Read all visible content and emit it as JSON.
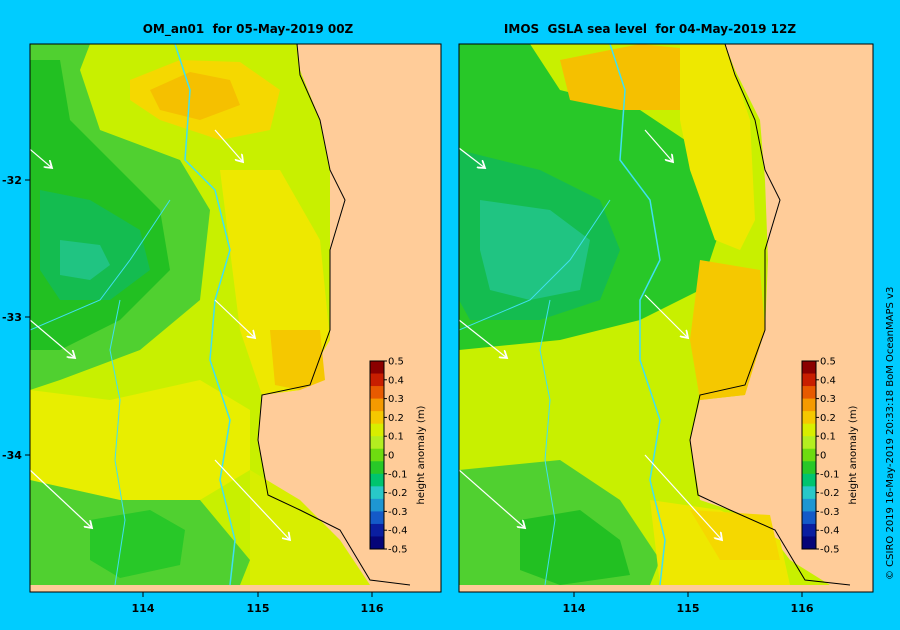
{
  "panels": [
    {
      "title": "OM_an01  for 05-May-2019 00Z"
    },
    {
      "title": "IMOS  GSLA sea level  for 04-May-2019 12Z"
    }
  ],
  "axes": {
    "lon_ticks": [
      "114",
      "115",
      "116"
    ],
    "lat_ticks": [
      "-32",
      "-33",
      "-34"
    ]
  },
  "colorbar": {
    "label": "height anomaly (m)",
    "ticks": [
      "0.5",
      "0.4",
      "0.3",
      "0.2",
      "0.1",
      "0",
      "-0.1",
      "-0.2",
      "-0.3",
      "-0.4",
      "-0.5"
    ],
    "colors": [
      "#8B0000",
      "#C81E00",
      "#E85A00",
      "#F59A00",
      "#F5C800",
      "#D8EE00",
      "#B4EE20",
      "#6EDC10",
      "#28C828",
      "#00C46E",
      "#28C8C8",
      "#1E96D2",
      "#145AC8",
      "#0A1EA0",
      "#050578"
    ]
  },
  "credit": "© CSIRO 2019   16-May-2019 20:33:18 BoM OceanMAPS v3",
  "colors": {
    "background": "#00CCFF",
    "land": "#FFCC99",
    "isobath": "#40E0F0"
  }
}
